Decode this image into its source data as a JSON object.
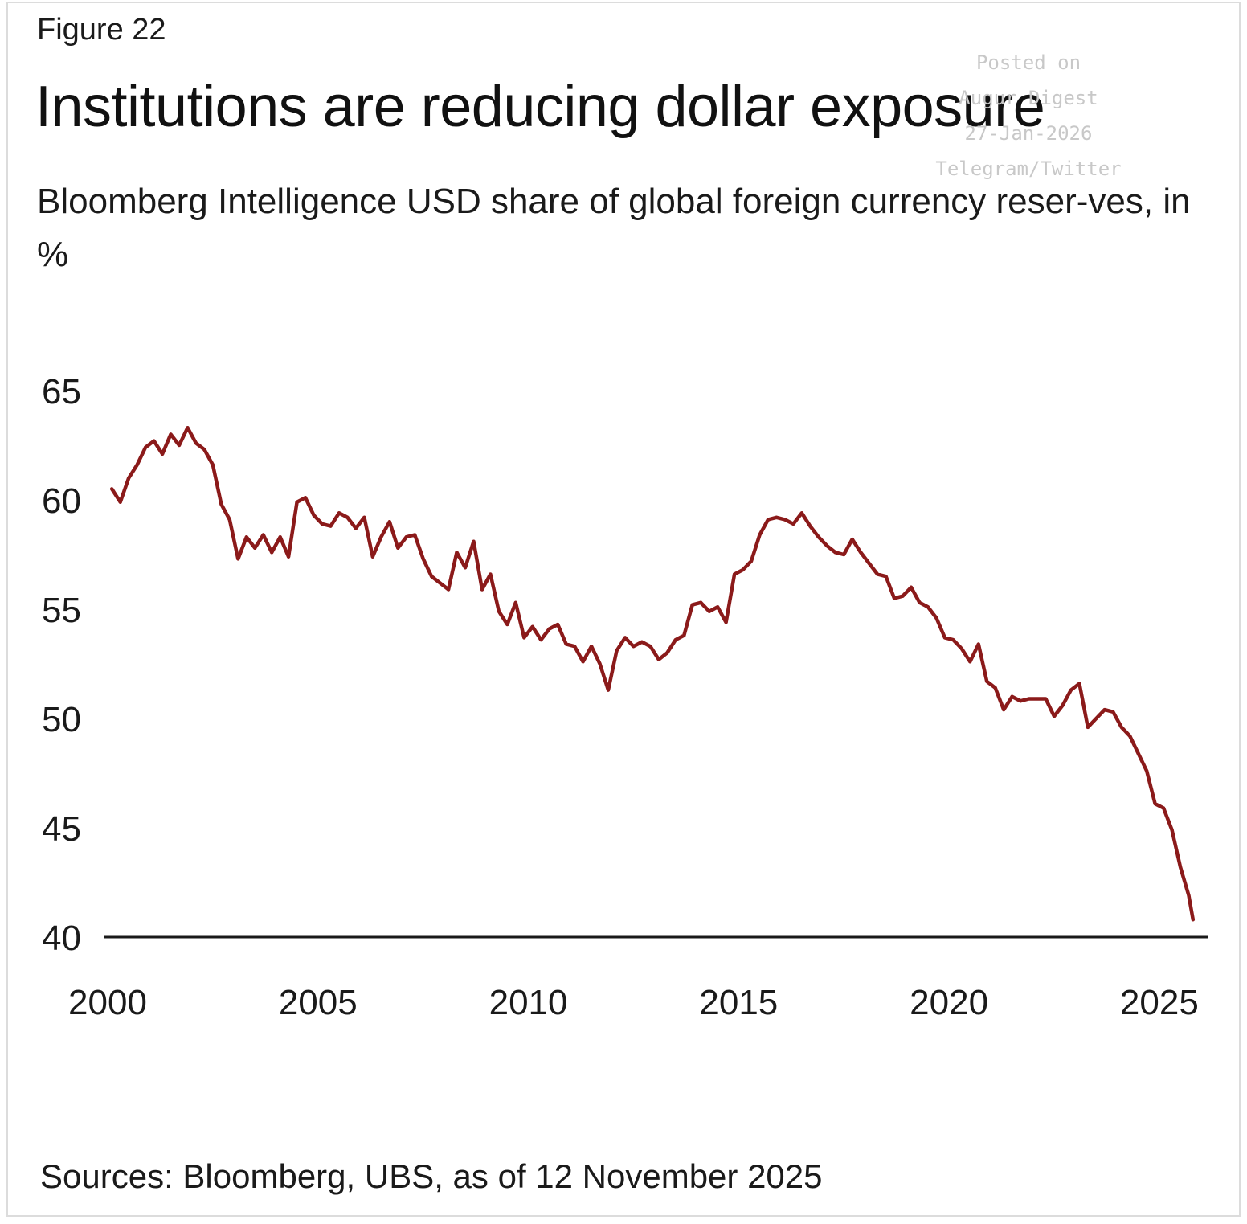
{
  "figure_label": "Figure 22",
  "watermark": {
    "lines": [
      "Posted on",
      "Augur Digest",
      "27-Jan-2026",
      "Telegram/Twitter"
    ]
  },
  "source_text": "Sources: Bloomberg, UBS, as of 12 November 2025",
  "colors": {
    "series": "#8b1a1a",
    "axis": "#1a1a1a",
    "text": "#1a1a1a",
    "watermark": "#c8c8c8"
  },
  "chart_data": {
    "type": "line",
    "title": "Institutions are reducing dollar exposure",
    "subtitle": "Bloomberg Intelligence USD share of global foreign currency reser-ves, in %",
    "xlabel": "",
    "ylabel": "",
    "xlim": [
      2000,
      2025.9
    ],
    "ylim": [
      40,
      65
    ],
    "x_ticks": [
      2000,
      2005,
      2010,
      2015,
      2020,
      2025
    ],
    "y_ticks": [
      40,
      45,
      50,
      55,
      60,
      65
    ],
    "grid": false,
    "legend": "none",
    "series": [
      {
        "x": [
          2000.1,
          2000.3,
          2000.5,
          2000.7,
          2000.9,
          2001.1,
          2001.3,
          2001.5,
          2001.7,
          2001.9,
          2002.1,
          2002.3,
          2002.5,
          2002.7,
          2002.9,
          2003.1,
          2003.3,
          2003.5,
          2003.7,
          2003.9,
          2004.1,
          2004.3,
          2004.5,
          2004.7,
          2004.9,
          2005.1,
          2005.3,
          2005.5,
          2005.7,
          2005.9,
          2006.1,
          2006.3,
          2006.5,
          2006.7,
          2006.9,
          2007.1,
          2007.3,
          2007.5,
          2007.7,
          2007.9,
          2008.1,
          2008.3,
          2008.5,
          2008.7,
          2008.9,
          2009.1,
          2009.3,
          2009.5,
          2009.7,
          2009.9,
          2010.1,
          2010.3,
          2010.5,
          2010.7,
          2010.9,
          2011.1,
          2011.3,
          2011.5,
          2011.7,
          2011.9,
          2012.1,
          2012.3,
          2012.5,
          2012.7,
          2012.9,
          2013.1,
          2013.3,
          2013.5,
          2013.7,
          2013.9,
          2014.1,
          2014.3,
          2014.5,
          2014.7,
          2014.9,
          2015.1,
          2015.3,
          2015.5,
          2015.7,
          2015.9,
          2016.1,
          2016.3,
          2016.5,
          2016.7,
          2016.9,
          2017.1,
          2017.3,
          2017.5,
          2017.7,
          2017.9,
          2018.1,
          2018.3,
          2018.5,
          2018.7,
          2018.9,
          2019.1,
          2019.3,
          2019.5,
          2019.7,
          2019.9,
          2020.1,
          2020.3,
          2020.5,
          2020.7,
          2020.9,
          2021.1,
          2021.3,
          2021.5,
          2021.7,
          2021.9,
          2022.1,
          2022.3,
          2022.5,
          2022.7,
          2022.9,
          2023.1,
          2023.3,
          2023.5,
          2023.7,
          2023.9,
          2024.1,
          2024.3,
          2024.5,
          2024.7,
          2024.9,
          2025.1,
          2025.3,
          2025.5,
          2025.7,
          2025.8
        ],
        "values": [
          60.5,
          59.9,
          61.0,
          61.6,
          62.4,
          62.7,
          62.1,
          63.0,
          62.5,
          63.3,
          62.6,
          62.3,
          61.6,
          59.8,
          59.1,
          57.3,
          58.3,
          57.8,
          58.4,
          57.6,
          58.3,
          57.4,
          59.9,
          60.1,
          59.3,
          58.9,
          58.8,
          59.4,
          59.2,
          58.7,
          59.2,
          57.4,
          58.3,
          59.0,
          57.8,
          58.3,
          58.4,
          57.3,
          56.5,
          56.2,
          55.9,
          57.6,
          56.9,
          58.1,
          55.9,
          56.6,
          54.9,
          54.3,
          55.3,
          53.7,
          54.2,
          53.6,
          54.1,
          54.3,
          53.4,
          53.3,
          52.6,
          53.3,
          52.5,
          51.3,
          53.1,
          53.7,
          53.3,
          53.5,
          53.3,
          52.7,
          53.0,
          53.6,
          53.8,
          55.2,
          55.3,
          54.9,
          55.1,
          54.4,
          56.6,
          56.8,
          57.2,
          58.4,
          59.1,
          59.2,
          59.1,
          58.9,
          59.4,
          58.8,
          58.3,
          57.9,
          57.6,
          57.5,
          58.2,
          57.6,
          57.1,
          56.6,
          56.5,
          55.5,
          55.6,
          56.0,
          55.3,
          55.1,
          54.6,
          53.7,
          53.6,
          53.2,
          52.6,
          53.4,
          51.7,
          51.4,
          50.4,
          51.0,
          50.8,
          50.9,
          50.9,
          50.9,
          50.1,
          50.6,
          51.3,
          51.6,
          49.6,
          50.0,
          50.4,
          50.3,
          49.6,
          49.2,
          48.4,
          47.6,
          46.1,
          45.9,
          44.9,
          43.2,
          41.9,
          40.8
        ]
      }
    ]
  }
}
